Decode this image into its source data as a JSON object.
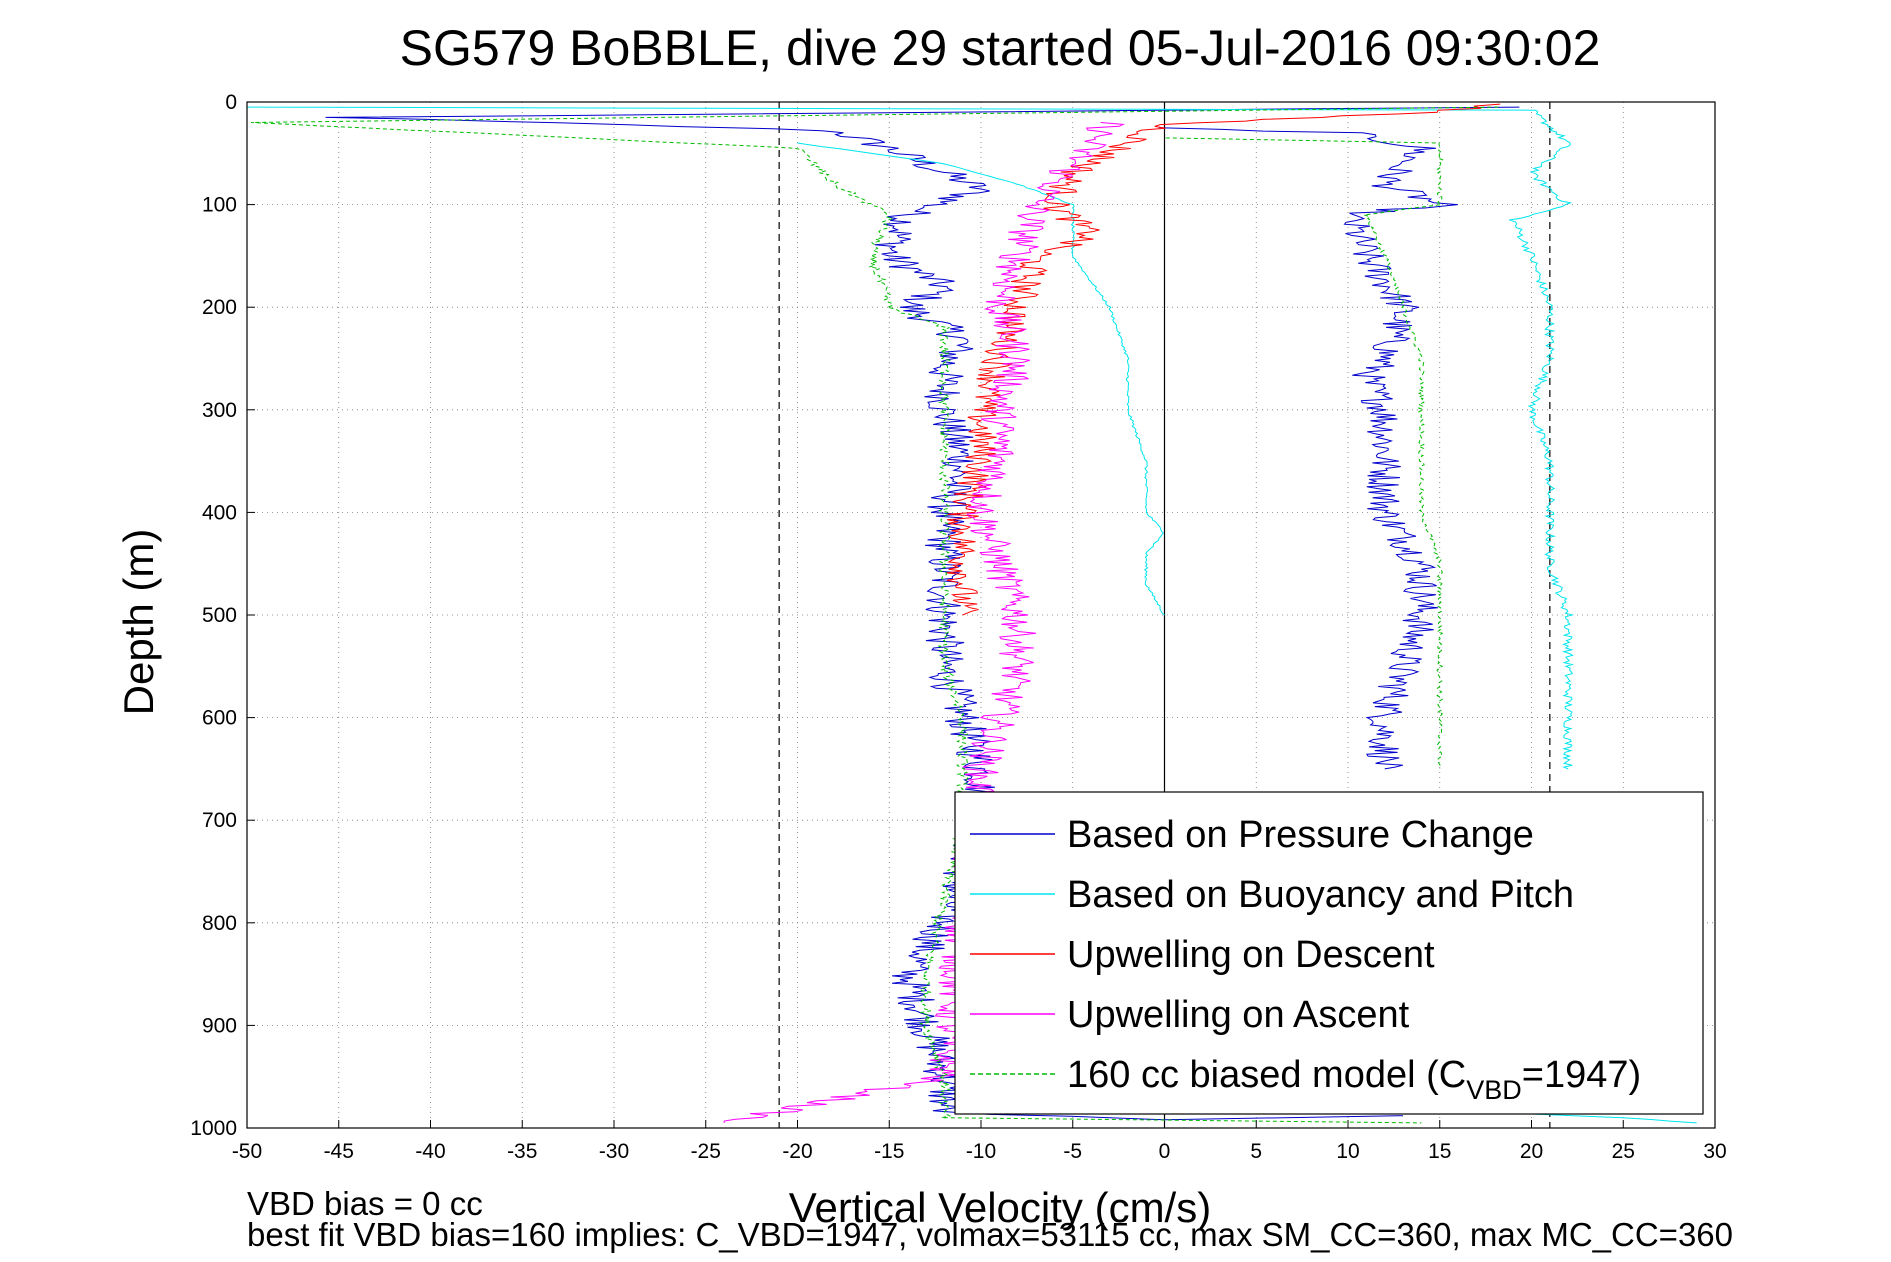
{
  "chart_data": {
    "type": "line",
    "title": "SG579 BoBBLE, dive 29 started 05-Jul-2016 09:30:02",
    "xlabel": "Vertical Velocity (cm/s)",
    "ylabel": "Depth (m)",
    "xlim": [
      -50,
      30
    ],
    "ylim": [
      1000,
      0
    ],
    "y_reversed": true,
    "grid": true,
    "xticks": [
      "-50",
      "-45",
      "-40",
      "-35",
      "-30",
      "-25",
      "-20",
      "-15",
      "-10",
      "-5",
      "0",
      "5",
      "10",
      "15",
      "20",
      "25",
      "30"
    ],
    "yticks": [
      "0",
      "100",
      "200",
      "300",
      "400",
      "500",
      "600",
      "700",
      "800",
      "900",
      "1000"
    ],
    "reference_lines": [
      {
        "x": -21,
        "style": "dashed",
        "color": "#000000"
      },
      {
        "x": 0,
        "style": "solid",
        "color": "#000000"
      },
      {
        "x": 21,
        "style": "dashed",
        "color": "#000000"
      }
    ],
    "legend": {
      "position": "bottom-right",
      "entries": [
        {
          "text": "Based on Pressure Change",
          "color": "#0000cc",
          "style": "solid"
        },
        {
          "text": "Based on Buoyancy and Pitch",
          "color": "#00e5ee",
          "style": "solid"
        },
        {
          "text": "Upwelling on Descent",
          "color": "#ff0000",
          "style": "solid"
        },
        {
          "text": "Upwelling on Ascent",
          "color": "#ff00ff",
          "style": "solid"
        },
        {
          "text": "160 cc biased model (C",
          "sub": "VBD",
          "tail": "=1947)",
          "color": "#00bb00",
          "style": "dashed"
        }
      ]
    },
    "series": [
      {
        "name": "Based on Pressure Change",
        "color": "#0000cc",
        "noise": 1.1,
        "points": [
          [
            19,
            5
          ],
          [
            -45,
            15
          ],
          [
            -30,
            22
          ],
          [
            -18,
            28
          ],
          [
            -15,
            45
          ],
          [
            -10,
            85
          ],
          [
            -14,
            110
          ],
          [
            -15,
            150
          ],
          [
            -12,
            180
          ],
          [
            -14,
            200
          ],
          [
            -11,
            230
          ],
          [
            -12,
            260
          ],
          [
            -12,
            300
          ],
          [
            -11,
            350
          ],
          [
            -12,
            400
          ],
          [
            -12,
            450
          ],
          [
            -12,
            500
          ],
          [
            -12,
            550
          ],
          [
            -11,
            600
          ],
          [
            -10,
            650
          ],
          [
            -10,
            700
          ],
          [
            -11,
            750
          ],
          [
            -12,
            800
          ],
          [
            -14,
            850
          ],
          [
            -13,
            900
          ],
          [
            -12,
            950
          ],
          [
            -12,
            985
          ],
          [
            0,
            992
          ],
          [
            13,
            988
          ]
        ]
      },
      {
        "name": "Based on Pressure Change",
        "color": "#0000cc",
        "noise": 1.0,
        "points": [
          [
            -1,
            25
          ],
          [
            10,
            30
          ],
          [
            14,
            45
          ],
          [
            13,
            60
          ],
          [
            12,
            80
          ],
          [
            15,
            100
          ],
          [
            10,
            110
          ],
          [
            11,
            150
          ],
          [
            13,
            200
          ],
          [
            12,
            250
          ],
          [
            11,
            270
          ],
          [
            12,
            300
          ],
          [
            12,
            350
          ],
          [
            12,
            400
          ],
          [
            14,
            450
          ],
          [
            14,
            500
          ],
          [
            13,
            550
          ],
          [
            12,
            600
          ],
          [
            12,
            650
          ]
        ]
      },
      {
        "name": "Based on Buoyancy and Pitch",
        "color": "#00e5ee",
        "noise": 0.25,
        "points": [
          [
            -50,
            5
          ],
          [
            20,
            8
          ],
          [
            22,
            40
          ],
          [
            20,
            70
          ],
          [
            22,
            100
          ],
          [
            19,
            115
          ],
          [
            20,
            150
          ],
          [
            21,
            200
          ],
          [
            21,
            250
          ],
          [
            20,
            300
          ],
          [
            21,
            350
          ],
          [
            21,
            400
          ],
          [
            21,
            450
          ],
          [
            22,
            500
          ],
          [
            22,
            550
          ],
          [
            22,
            600
          ],
          [
            22,
            650
          ]
        ]
      },
      {
        "name": "Based on Buoyancy and Pitch",
        "color": "#00e5ee",
        "noise": 0.08,
        "points": [
          [
            -20,
            40
          ],
          [
            -12,
            60
          ],
          [
            -8,
            80
          ],
          [
            -5,
            100
          ],
          [
            -5,
            150
          ],
          [
            -3,
            200
          ],
          [
            -2,
            250
          ],
          [
            -2,
            300
          ],
          [
            -1,
            350
          ],
          [
            -1,
            400
          ],
          [
            0,
            420
          ],
          [
            -1,
            440
          ],
          [
            -1,
            470
          ],
          [
            0,
            500
          ]
        ]
      },
      {
        "name": "Based on Buoyancy and Pitch",
        "color": "#00e5ee",
        "noise": 0.1,
        "points": [
          [
            18,
            985
          ],
          [
            25,
            990
          ],
          [
            29,
            995
          ]
        ]
      },
      {
        "name": "Upwelling on Descent",
        "color": "#ff0000",
        "noise": 0.9,
        "points": [
          [
            19,
            2
          ],
          [
            14,
            10
          ],
          [
            0,
            22
          ],
          [
            -2,
            40
          ],
          [
            -5,
            70
          ],
          [
            -6,
            100
          ],
          [
            -4,
            130
          ],
          [
            -7,
            150
          ],
          [
            -8,
            200
          ],
          [
            -9,
            250
          ],
          [
            -10,
            300
          ],
          [
            -10,
            350
          ],
          [
            -11,
            400
          ],
          [
            -11,
            450
          ],
          [
            -11,
            500
          ]
        ]
      },
      {
        "name": "Upwelling on Ascent",
        "color": "#ff00ff",
        "noise": 1.0,
        "points": [
          [
            -3,
            20
          ],
          [
            -5,
            60
          ],
          [
            -7,
            100
          ],
          [
            -8,
            150
          ],
          [
            -9,
            200
          ],
          [
            -8,
            250
          ],
          [
            -9,
            300
          ],
          [
            -9,
            350
          ],
          [
            -10,
            400
          ],
          [
            -9,
            450
          ],
          [
            -8,
            500
          ],
          [
            -8,
            550
          ],
          [
            -9,
            600
          ],
          [
            -10,
            650
          ],
          [
            -12,
            950
          ],
          [
            -24,
            995
          ]
        ]
      },
      {
        "name": "160 cc biased model (CVBD=1947)",
        "color": "#00bb00",
        "dashed": true,
        "noise": 0.3,
        "points": [
          [
            18,
            5
          ],
          [
            -50,
            20
          ],
          [
            -20,
            45
          ],
          [
            -18,
            80
          ],
          [
            -15,
            110
          ],
          [
            -16,
            150
          ],
          [
            -15,
            200
          ],
          [
            -12,
            220
          ],
          [
            -12,
            250
          ],
          [
            -12,
            300
          ],
          [
            -12,
            350
          ],
          [
            -12,
            400
          ],
          [
            -12,
            450
          ],
          [
            -12,
            500
          ],
          [
            -12,
            550
          ],
          [
            -11,
            600
          ],
          [
            -11,
            650
          ],
          [
            -11,
            700
          ],
          [
            -13,
            850
          ],
          [
            -13,
            900
          ],
          [
            -12,
            950
          ],
          [
            -12,
            990
          ],
          [
            14,
            995
          ]
        ]
      },
      {
        "name": "160 cc biased model (CVBD=1947)",
        "color": "#00bb00",
        "dashed": true,
        "noise": 0.15,
        "points": [
          [
            0,
            35
          ],
          [
            15,
            40
          ],
          [
            15,
            100
          ],
          [
            11,
            110
          ],
          [
            12,
            150
          ],
          [
            13,
            200
          ],
          [
            14,
            250
          ],
          [
            14,
            300
          ],
          [
            14,
            350
          ],
          [
            14,
            400
          ],
          [
            15,
            450
          ],
          [
            15,
            500
          ],
          [
            15,
            550
          ],
          [
            15,
            600
          ],
          [
            15,
            650
          ]
        ]
      }
    ]
  },
  "footer": {
    "line1": "VBD bias = 0 cc",
    "line2": "best fit VBD bias=160 implies: C_VBD=1947, volmax=53115 cc, max SM_CC=360, max MC_CC=360"
  }
}
